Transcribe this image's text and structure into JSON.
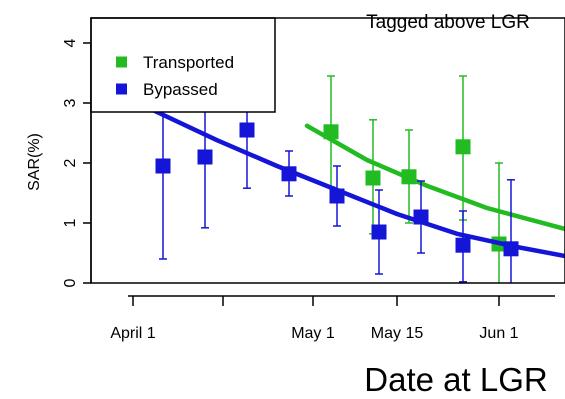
{
  "chart_data": {
    "type": "scatter",
    "title": "Tagged above LGR",
    "xlabel": "Date at LGR",
    "ylabel": "SAR(%)",
    "xlim": [
      "1998-03-25",
      "1998-06-12"
    ],
    "ylim": [
      0,
      4
    ],
    "xticks": [
      {
        "date": "1998-04-01",
        "label": "April 1"
      },
      {
        "date": "1998-04-16",
        "label": ""
      },
      {
        "date": "1998-05-01",
        "label": "May 1"
      },
      {
        "date": "1998-05-15",
        "label": "May 15"
      },
      {
        "date": "1998-06-01",
        "label": "Jun 1"
      }
    ],
    "yticks": [
      0,
      1,
      2,
      3,
      4
    ],
    "grid": false,
    "legend": {
      "position": "top-left"
    },
    "series": [
      {
        "name": "Transported",
        "color": "#22bb22",
        "points": [
          {
            "x": "1998-05-04",
            "y": 2.52,
            "lo": 1.6,
            "hi": 3.45
          },
          {
            "x": "1998-05-11",
            "y": 1.75,
            "lo": 0.82,
            "hi": 2.72
          },
          {
            "x": "1998-05-17",
            "y": 1.77,
            "lo": 1.0,
            "hi": 2.55
          },
          {
            "x": "1998-05-26",
            "y": 2.27,
            "lo": 1.05,
            "hi": 3.45
          },
          {
            "x": "1998-06-01",
            "y": 0.65,
            "lo": -0.3,
            "hi": 2.0
          }
        ],
        "fit": [
          {
            "x": "1998-04-30",
            "y": 2.62
          },
          {
            "x": "1998-05-10",
            "y": 2.05
          },
          {
            "x": "1998-05-20",
            "y": 1.62
          },
          {
            "x": "1998-05-30",
            "y": 1.25
          },
          {
            "x": "1998-06-12",
            "y": 0.9
          }
        ]
      },
      {
        "name": "Bypassed",
        "color": "#1515d8",
        "points": [
          {
            "x": "1998-04-06",
            "y": 1.95,
            "lo": 0.4,
            "hi": 3.5
          },
          {
            "x": "1998-04-13",
            "y": 2.1,
            "lo": 0.92,
            "hi": 3.3
          },
          {
            "x": "1998-04-20",
            "y": 2.55,
            "lo": 1.58,
            "hi": 3.5
          },
          {
            "x": "1998-04-27",
            "y": 1.82,
            "lo": 1.45,
            "hi": 2.2
          },
          {
            "x": "1998-05-05",
            "y": 1.45,
            "lo": 0.95,
            "hi": 1.95
          },
          {
            "x": "1998-05-12",
            "y": 0.85,
            "lo": 0.15,
            "hi": 1.55
          },
          {
            "x": "1998-05-19",
            "y": 1.1,
            "lo": 0.5,
            "hi": 1.7
          },
          {
            "x": "1998-05-26",
            "y": 0.63,
            "lo": 0.02,
            "hi": 1.2
          },
          {
            "x": "1998-06-03",
            "y": 0.57,
            "lo": -0.2,
            "hi": 1.72
          }
        ],
        "fit": [
          {
            "x": "1998-03-25",
            "y": 3.38
          },
          {
            "x": "1998-04-05",
            "y": 2.85
          },
          {
            "x": "1998-04-15",
            "y": 2.38
          },
          {
            "x": "1998-04-25",
            "y": 1.95
          },
          {
            "x": "1998-05-05",
            "y": 1.55
          },
          {
            "x": "1998-05-15",
            "y": 1.15
          },
          {
            "x": "1998-05-25",
            "y": 0.82
          },
          {
            "x": "1998-06-04",
            "y": 0.6
          },
          {
            "x": "1998-06-12",
            "y": 0.45
          }
        ]
      }
    ]
  }
}
